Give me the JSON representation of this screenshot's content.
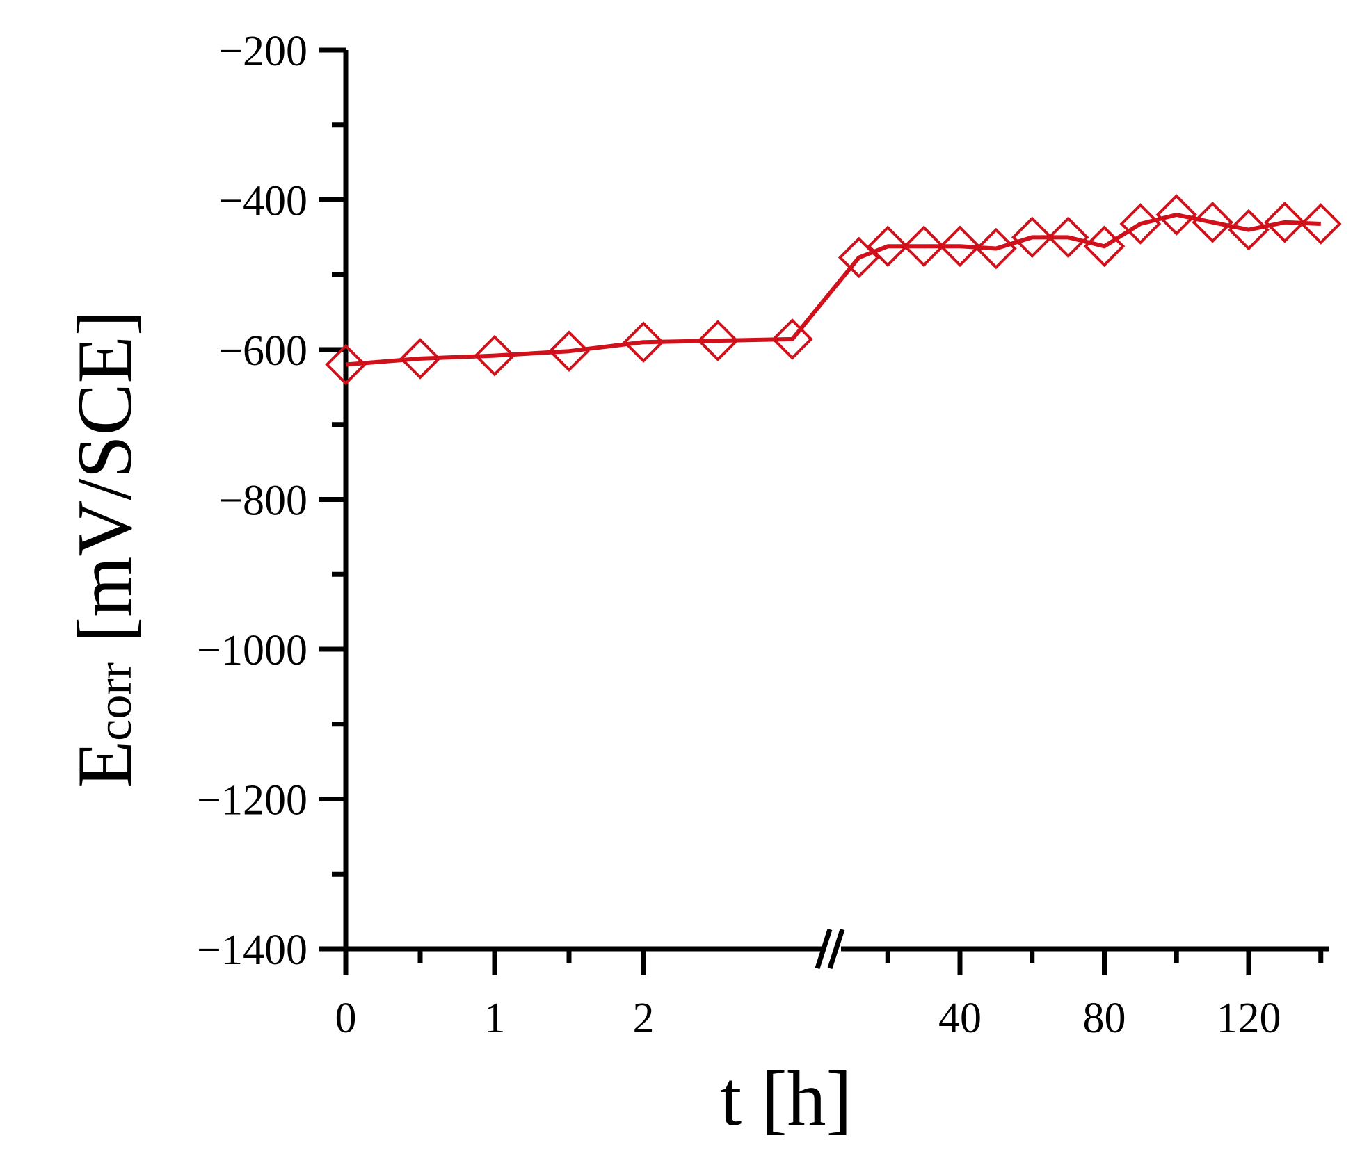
{
  "chart_data": {
    "type": "line",
    "xlabel": "t [h]",
    "ylabel_main": "E",
    "ylabel_sub": "corr",
    "ylabel_unit": " [mV/SCE]",
    "ylim": [
      -1400,
      -200
    ],
    "y_ticks": [
      -200,
      -400,
      -600,
      -800,
      -1000,
      -1200,
      -1400
    ],
    "y_tick_labels": [
      "−200",
      "−400",
      "−600",
      "−800",
      "−1000",
      "−1200",
      "−1400"
    ],
    "x_axis_break": true,
    "x_segments": [
      {
        "range": [
          0,
          2.5
        ],
        "ticks": [
          0,
          1,
          2
        ],
        "tick_labels": [
          "0",
          "1",
          "2"
        ]
      },
      {
        "range": [
          10,
          140
        ],
        "ticks": [
          40,
          80,
          120
        ],
        "tick_labels": [
          "40",
          "80",
          "120"
        ]
      }
    ],
    "grid": false,
    "legend": "none",
    "series": [
      {
        "color": "#d0101a",
        "marker": "diamond-open",
        "points": [
          {
            "x": 0,
            "y": -620
          },
          {
            "x": 0.5,
            "y": -612
          },
          {
            "x": 1,
            "y": -608
          },
          {
            "x": 1.5,
            "y": -602
          },
          {
            "x": 2,
            "y": -590
          },
          {
            "x": 2.5,
            "y": -588
          },
          {
            "x": 3,
            "y": -586
          },
          {
            "x": 12,
            "y": -477
          },
          {
            "x": 20,
            "y": -462
          },
          {
            "x": 30,
            "y": -462
          },
          {
            "x": 40,
            "y": -462
          },
          {
            "x": 50,
            "y": -465
          },
          {
            "x": 60,
            "y": -450
          },
          {
            "x": 70,
            "y": -450
          },
          {
            "x": 80,
            "y": -462
          },
          {
            "x": 90,
            "y": -432
          },
          {
            "x": 100,
            "y": -420
          },
          {
            "x": 110,
            "y": -430
          },
          {
            "x": 120,
            "y": -440
          },
          {
            "x": 130,
            "y": -430
          },
          {
            "x": 140,
            "y": -432
          }
        ]
      }
    ]
  }
}
